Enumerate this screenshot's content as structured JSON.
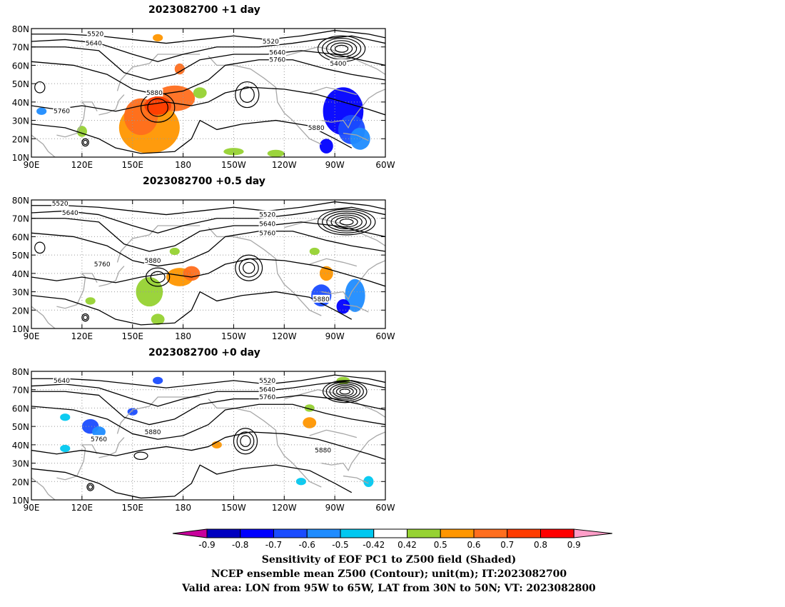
{
  "panels": [
    {
      "title": "2023082700  +1 day",
      "contour_labels": [
        {
          "text": "5520",
          "lon": 128,
          "lat": 77
        },
        {
          "text": "5640",
          "lon": 127,
          "lat": 72
        },
        {
          "text": "5520",
          "lon": 232,
          "lat": 73
        },
        {
          "text": "5640",
          "lon": 236,
          "lat": 67
        },
        {
          "text": "5760",
          "lon": 236,
          "lat": 63
        },
        {
          "text": "5400",
          "lon": 272,
          "lat": 61
        },
        {
          "text": "5880",
          "lon": 163,
          "lat": 45
        },
        {
          "text": "5760",
          "lon": 108,
          "lat": 35
        },
        {
          "text": "5880",
          "lon": 259,
          "lat": 26
        }
      ]
    },
    {
      "title": "2023082700  +0.5 day",
      "contour_labels": [
        {
          "text": "5520",
          "lon": 107,
          "lat": 78
        },
        {
          "text": "5640",
          "lon": 113,
          "lat": 73
        },
        {
          "text": "5520",
          "lon": 230,
          "lat": 72
        },
        {
          "text": "5640",
          "lon": 230,
          "lat": 67
        },
        {
          "text": "5760",
          "lon": 230,
          "lat": 62
        },
        {
          "text": "5760",
          "lon": 132,
          "lat": 45
        },
        {
          "text": "5880",
          "lon": 162,
          "lat": 47
        },
        {
          "text": "5880",
          "lon": 262,
          "lat": 26
        }
      ]
    },
    {
      "title": "2023082700  +0 day",
      "contour_labels": [
        {
          "text": "5640",
          "lon": 108,
          "lat": 75
        },
        {
          "text": "5520",
          "lon": 230,
          "lat": 75
        },
        {
          "text": "5640",
          "lon": 230,
          "lat": 70
        },
        {
          "text": "5760",
          "lon": 230,
          "lat": 66
        },
        {
          "text": "5760",
          "lon": 130,
          "lat": 43
        },
        {
          "text": "5880",
          "lon": 162,
          "lat": 47
        },
        {
          "text": "5880",
          "lon": 263,
          "lat": 37
        }
      ]
    }
  ],
  "axes": {
    "lat_ticks": [
      "80N",
      "70N",
      "60N",
      "50N",
      "40N",
      "30N",
      "20N",
      "10N"
    ],
    "lon_ticks": [
      "90E",
      "120E",
      "150E",
      "180",
      "150W",
      "120W",
      "90W",
      "60W"
    ],
    "lon_range": [
      90,
      300
    ],
    "lat_range": [
      10,
      80
    ],
    "grid": true
  },
  "colorbar": {
    "labels": [
      "-0.9",
      "-0.8",
      "-0.7",
      "-0.6",
      "-0.5",
      "-0.42",
      "0.42",
      "0.5",
      "0.6",
      "0.7",
      "0.8",
      "0.9"
    ],
    "colors": [
      "#c8009c",
      "#0000c0",
      "#0000ff",
      "#1a4cff",
      "#1f8cff",
      "#00c8f0",
      "#ffffff",
      "#96d232",
      "#ff9600",
      "#ff6e1e",
      "#ff3c00",
      "#ff0000",
      "#ff9ec8"
    ]
  },
  "footer": {
    "line1": "Sensitivity of EOF PC1 to Z500 field (Shaded)",
    "line2": "NCEP ensemble mean Z500 (Contour); unit(m); IT:2023082700",
    "line3": "Valid area: LON from 95W to 65W, LAT from 30N to 50N; VT: 2023082800"
  }
}
